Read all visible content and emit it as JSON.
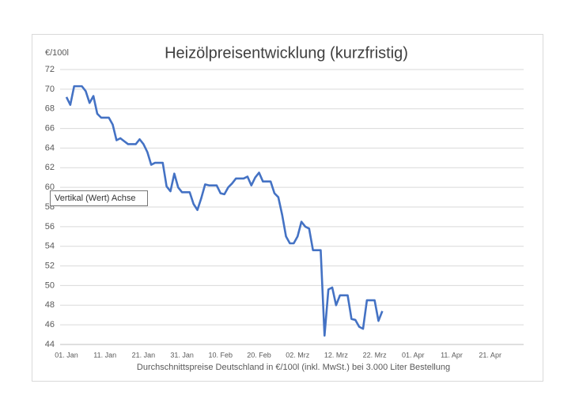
{
  "chart_data": {
    "type": "line",
    "title": "Heizölpreisentwicklung (kurzfristig)",
    "y_label": "€/100l",
    "x_label": "Durchschnittspreise Deutschland in €/100l (inkl. MwSt.) bei 3.000 Liter Bestellung",
    "tooltip": "Vertikal (Wert) Achse",
    "categories": [
      "01. Jan",
      null,
      null,
      null,
      null,
      null,
      null,
      null,
      null,
      null,
      "11. Jan",
      null,
      null,
      null,
      null,
      null,
      null,
      null,
      null,
      null,
      "21. Jan",
      null,
      null,
      null,
      null,
      null,
      null,
      null,
      null,
      null,
      "31. Jan",
      null,
      null,
      null,
      null,
      null,
      null,
      null,
      null,
      null,
      "10. Feb",
      null,
      null,
      null,
      null,
      null,
      null,
      null,
      null,
      null,
      "20. Feb",
      null,
      null,
      null,
      null,
      null,
      null,
      null,
      null,
      null,
      "02. Mrz",
      null,
      null,
      null,
      null,
      null,
      null,
      null,
      null,
      null,
      "12. Mrz",
      null,
      null,
      null,
      null,
      null,
      null,
      null,
      null,
      null,
      "22. Mrz",
      null,
      null,
      null,
      null,
      null,
      null,
      null,
      null,
      null,
      "01. Apr",
      null,
      null,
      null,
      null,
      null,
      null,
      null,
      null,
      null,
      "11. Apr",
      null,
      null,
      null,
      null,
      null,
      null,
      null,
      null,
      null,
      "21. Apr",
      null,
      null,
      null,
      null,
      null,
      null,
      null,
      null,
      null
    ],
    "values": [
      69.2,
      68.4,
      70.3,
      70.3,
      70.3,
      69.8,
      68.6,
      69.3,
      67.5,
      67.1,
      67.1,
      67.1,
      66.4,
      64.8,
      65.0,
      64.7,
      64.4,
      64.4,
      64.4,
      64.9,
      64.4,
      63.6,
      62.3,
      62.5,
      62.5,
      62.5,
      60.1,
      59.6,
      61.4,
      60.0,
      59.5,
      59.5,
      59.5,
      58.3,
      57.7,
      58.9,
      60.3,
      60.2,
      60.2,
      60.2,
      59.4,
      59.3,
      60.0,
      60.4,
      60.9,
      60.9,
      60.9,
      61.1,
      60.2,
      61.0,
      61.5,
      60.6,
      60.6,
      60.6,
      59.4,
      59.0,
      57.2,
      55.0,
      54.3,
      54.3,
      55.0,
      56.5,
      56.0,
      55.8,
      53.6,
      53.6,
      53.6,
      44.9,
      49.6,
      49.8,
      48.0,
      49.0,
      49.0,
      49.0,
      46.6,
      46.5,
      45.8,
      45.6,
      48.5,
      48.5,
      48.5,
      46.4,
      47.4,
      null,
      null,
      null,
      null,
      null,
      null,
      null,
      null,
      null,
      null,
      null,
      null,
      null,
      null,
      null,
      null,
      null,
      null,
      null,
      null,
      null,
      null,
      null,
      null,
      null,
      null,
      null,
      null,
      null,
      null,
      null,
      null,
      null,
      null,
      null,
      null,
      null
    ],
    "color": "#4472c4",
    "ylim": [
      44,
      72
    ],
    "yticks": [
      44,
      46,
      48,
      50,
      52,
      54,
      56,
      58,
      60,
      62,
      64,
      66,
      68,
      70,
      72
    ],
    "grid": true
  }
}
